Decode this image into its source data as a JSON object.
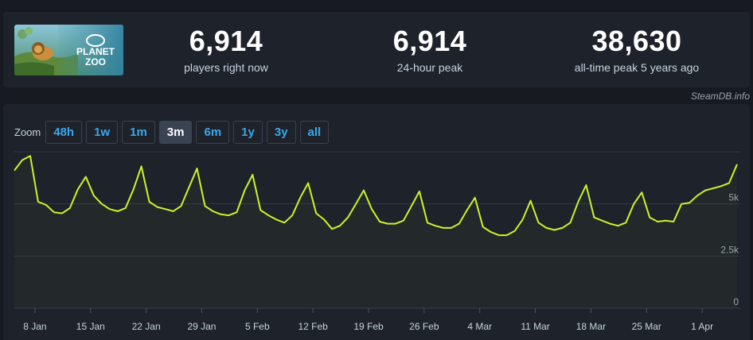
{
  "game": {
    "name": "Planet Zoo",
    "logo_text_line1": "PLANET",
    "logo_text_line2": "ZOO"
  },
  "stats": [
    {
      "value": "6,914",
      "label": "players right now"
    },
    {
      "value": "6,914",
      "label": "24-hour peak"
    },
    {
      "value": "38,630",
      "label": "all-time peak 5 years ago"
    }
  ],
  "credit": "SteamDB.info",
  "zoom": {
    "label": "Zoom",
    "options": [
      "48h",
      "1w",
      "1m",
      "3m",
      "6m",
      "1y",
      "3y",
      "all"
    ],
    "selected": "3m"
  },
  "colors": {
    "line": "#c9f529",
    "accent": "#3ba7e8"
  },
  "chart_data": {
    "type": "line",
    "ylim": [
      0,
      7500
    ],
    "y_ticks": [
      0,
      2500,
      5000
    ],
    "y_tick_labels": [
      "0",
      "2.5k",
      "5k"
    ],
    "x_tick_labels": [
      "8 Jan",
      "15 Jan",
      "22 Jan",
      "29 Jan",
      "5 Feb",
      "12 Feb",
      "19 Feb",
      "26 Feb",
      "4 Mar",
      "11 Mar",
      "18 Mar",
      "25 Mar",
      "1 Apr"
    ],
    "x_start_label_index": -1.1,
    "series": [
      {
        "values": [
          6600,
          7100,
          7300,
          5100,
          4950,
          4600,
          4550,
          4800,
          5700,
          6300,
          5400,
          5000,
          4750,
          4650,
          4800,
          5700,
          6800,
          5100,
          4850,
          4750,
          4650,
          4900,
          5800,
          6700,
          4900,
          4650,
          4500,
          4450,
          4600,
          5650,
          6400,
          4700,
          4450,
          4250,
          4100,
          4450,
          5300,
          6000,
          4550,
          4250,
          3800,
          3950,
          4350,
          5000,
          5650,
          4750,
          4150,
          4050,
          4050,
          4200,
          4900,
          5600,
          4100,
          3950,
          3850,
          3850,
          4050,
          4700,
          5300,
          3900,
          3650,
          3500,
          3500,
          3700,
          4250,
          5150,
          4100,
          3850,
          3750,
          3850,
          4100,
          5100,
          5900,
          4350,
          4200,
          4050,
          3950,
          4100,
          5000,
          5550,
          4350,
          4150,
          4200,
          4150,
          5000,
          5050,
          5400,
          5650,
          5750,
          5850,
          6000,
          6900
        ]
      }
    ]
  }
}
